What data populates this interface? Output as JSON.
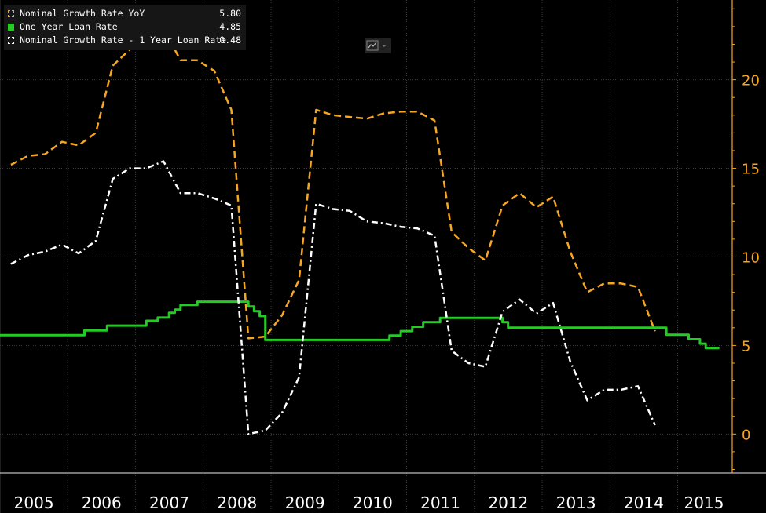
{
  "legend": {
    "items": [
      {
        "label": "Nominal Growth Rate YoY",
        "value": "5.80",
        "color": "#f5a623",
        "style": "dashed"
      },
      {
        "label": "One Year Loan Rate",
        "value": "4.85",
        "color": "#22cc22",
        "style": "solid"
      },
      {
        "label": "Nominal Growth Rate - 1 Year Loan Rate",
        "value": "0.48",
        "color": "#ffffff",
        "style": "dashdot"
      }
    ]
  },
  "toolbar": {
    "chart_type_icon": "line-chart-icon",
    "dropdown_icon": "chevron-down-icon"
  },
  "colors": {
    "background": "#000000",
    "grid": "#3a3a3a",
    "axis_right": "#f5a623",
    "axis_bottom": "#ffffff"
  },
  "chart_data": {
    "type": "line",
    "x_axis": {
      "type": "time",
      "range": [
        "2005-01-01",
        "2015-10-01"
      ],
      "tick_labels": [
        "2005",
        "2006",
        "2007",
        "2008",
        "2009",
        "2010",
        "2011",
        "2012",
        "2013",
        "2014",
        "2015"
      ]
    },
    "y_axis": {
      "side": "right",
      "range": [
        -2.2,
        24.5
      ],
      "ticks": [
        0,
        5,
        10,
        15,
        20
      ],
      "tick_labels": [
        "0",
        "5",
        "10",
        "15",
        "20"
      ]
    },
    "grid": true,
    "legend_position": "top-left",
    "series": [
      {
        "name": "Nominal Growth Rate YoY",
        "color": "#f5a623",
        "style": "dashed",
        "x": [
          "2005-03",
          "2005-06",
          "2005-09",
          "2005-12",
          "2006-03",
          "2006-06",
          "2006-09",
          "2006-12",
          "2007-03",
          "2007-06",
          "2007-09",
          "2007-12",
          "2008-03",
          "2008-06",
          "2008-09",
          "2008-12",
          "2009-03",
          "2009-06",
          "2009-09",
          "2009-12",
          "2010-03",
          "2010-06",
          "2010-09",
          "2010-12",
          "2011-03",
          "2011-06",
          "2011-09",
          "2011-12",
          "2012-03",
          "2012-06",
          "2012-09",
          "2012-12",
          "2013-03",
          "2013-06",
          "2013-09",
          "2013-12",
          "2014-03",
          "2014-06",
          "2014-09",
          "2014-12",
          "2015-03",
          "2015-06"
        ],
        "y": [
          15.2,
          15.7,
          15.8,
          16.5,
          16.3,
          17.0,
          20.8,
          21.7,
          22.3,
          22.9,
          21.1,
          21.1,
          20.5,
          18.3,
          5.4,
          5.5,
          6.7,
          8.7,
          18.3,
          18.0,
          17.9,
          17.8,
          18.1,
          18.2,
          18.2,
          17.7,
          11.4,
          10.5,
          9.8,
          12.9,
          13.6,
          12.8,
          13.4,
          10.3,
          8.0,
          8.5,
          8.5,
          8.3,
          5.8,
          null,
          null,
          null
        ]
      },
      {
        "name": "One Year Loan Rate",
        "color": "#22cc22",
        "style": "solid",
        "x": [
          "2005-01",
          "2006-04",
          "2006-08",
          "2007-03",
          "2007-05",
          "2007-07",
          "2007-08",
          "2007-09",
          "2007-12",
          "2008-09",
          "2008-10",
          "2008-11",
          "2008-12",
          "2010-10",
          "2010-12",
          "2011-02",
          "2011-04",
          "2011-07",
          "2012-06",
          "2012-07",
          "2014-11",
          "2015-03",
          "2015-05",
          "2015-06",
          "2015-08"
        ],
        "y": [
          5.58,
          5.85,
          6.12,
          6.39,
          6.57,
          6.84,
          7.02,
          7.29,
          7.47,
          7.2,
          6.93,
          6.66,
          5.31,
          5.56,
          5.81,
          6.06,
          6.31,
          6.56,
          6.31,
          6.0,
          5.6,
          5.35,
          5.1,
          4.85,
          4.85
        ]
      },
      {
        "name": "Nominal Growth Rate - 1 Year Loan Rate",
        "color": "#ffffff",
        "style": "dashdot",
        "x": [
          "2005-03",
          "2005-06",
          "2005-09",
          "2005-12",
          "2006-03",
          "2006-06",
          "2006-09",
          "2006-12",
          "2007-03",
          "2007-06",
          "2007-09",
          "2007-12",
          "2008-03",
          "2008-06",
          "2008-09",
          "2008-12",
          "2009-03",
          "2009-06",
          "2009-09",
          "2009-12",
          "2010-03",
          "2010-06",
          "2010-09",
          "2010-12",
          "2011-03",
          "2011-06",
          "2011-09",
          "2011-12",
          "2012-03",
          "2012-06",
          "2012-09",
          "2012-12",
          "2013-03",
          "2013-06",
          "2013-09",
          "2013-12",
          "2014-03",
          "2014-06",
          "2014-09",
          "2014-12",
          "2015-03",
          "2015-06"
        ],
        "y": [
          9.6,
          10.1,
          10.3,
          10.7,
          10.2,
          10.9,
          14.4,
          15.0,
          15.0,
          15.4,
          13.6,
          13.6,
          13.3,
          12.9,
          0.0,
          0.2,
          1.2,
          3.2,
          13.0,
          12.7,
          12.6,
          12.0,
          11.9,
          11.7,
          11.6,
          11.2,
          4.7,
          4.0,
          3.8,
          6.9,
          7.6,
          6.8,
          7.4,
          4.1,
          1.9,
          2.5,
          2.5,
          2.7,
          0.5,
          null,
          null,
          null
        ]
      }
    ]
  }
}
